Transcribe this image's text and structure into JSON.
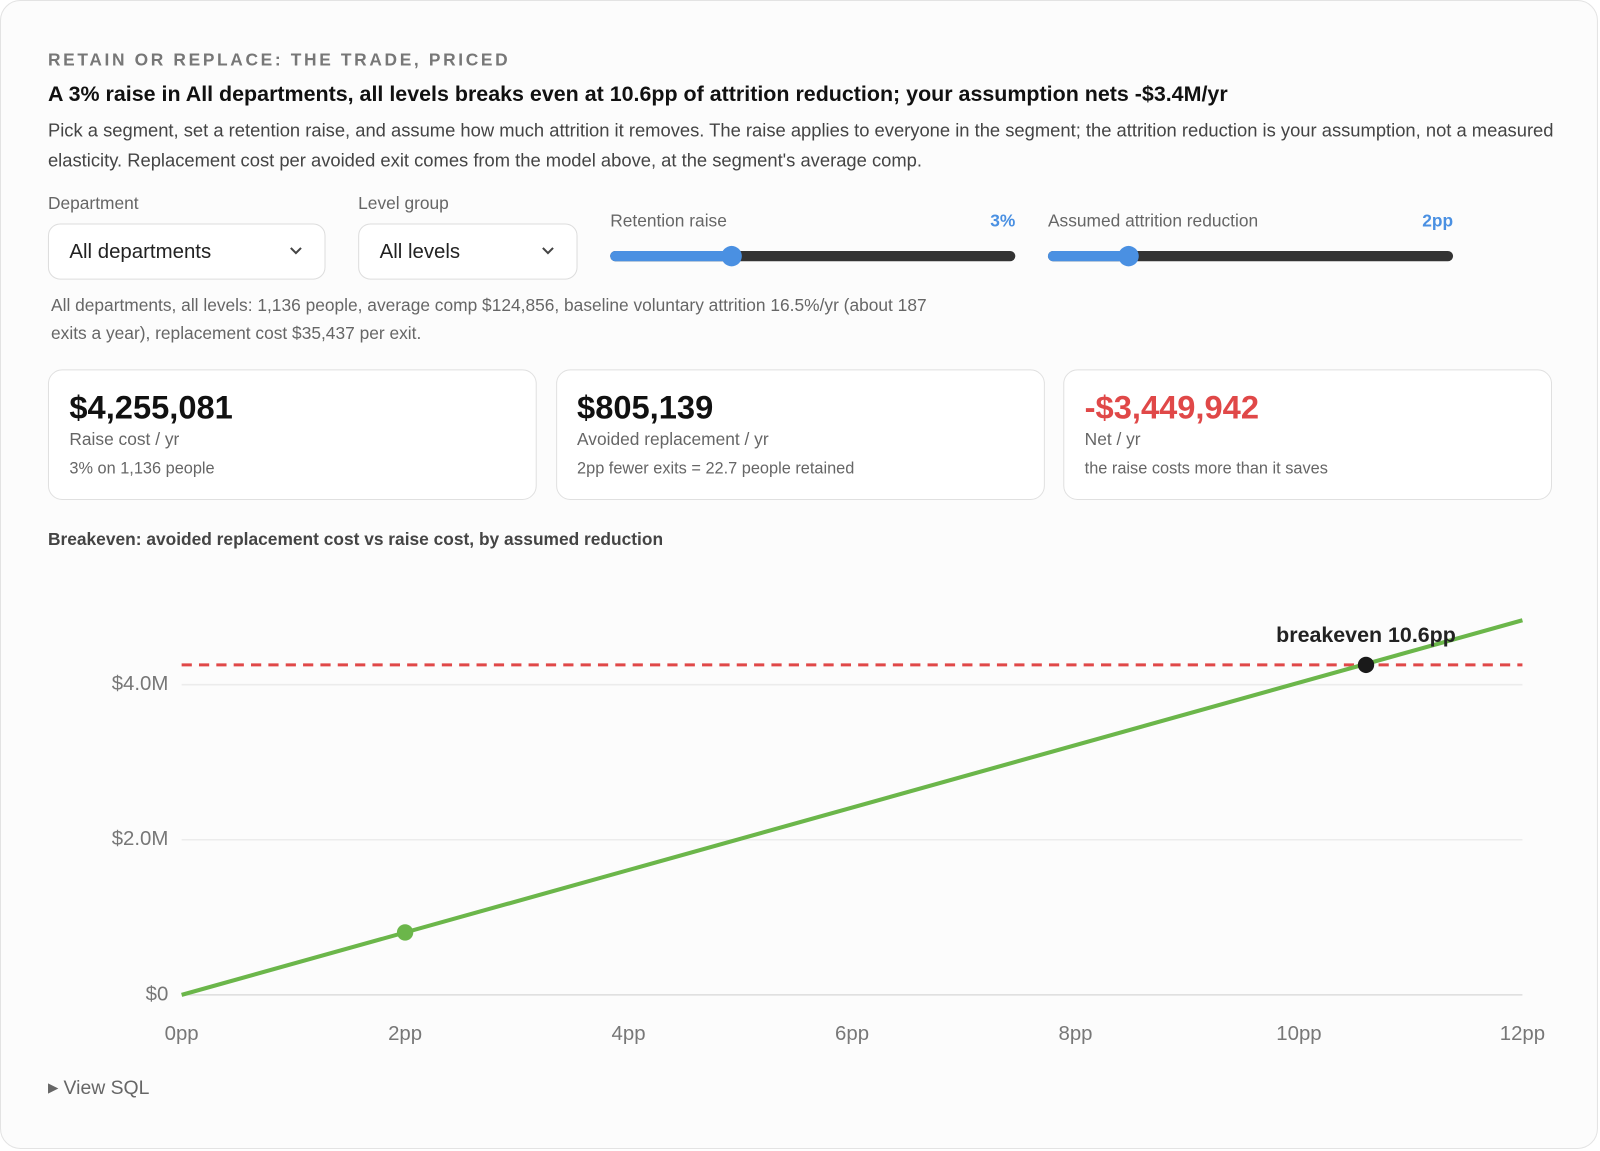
{
  "header": {
    "eyebrow": "RETAIN OR REPLACE: THE TRADE, PRICED",
    "headline": "A 3% raise in All departments, all levels breaks even at 10.6pp of attrition reduction; your assumption nets -$3.4M/yr",
    "description": "Pick a segment, set a retention raise, and assume how much attrition it removes. The raise applies to everyone in the segment; the attrition reduction is your assumption, not a measured elasticity. Replacement cost per avoided exit comes from the model above, at the segment's average comp."
  },
  "controls": {
    "department": {
      "label": "Department",
      "selected": "All departments"
    },
    "level_group": {
      "label": "Level group",
      "selected": "All levels"
    },
    "retention_raise": {
      "label": "Retention raise",
      "value_label": "3%",
      "value": 3,
      "min": 0,
      "max": 10
    },
    "attrition_reduction": {
      "label": "Assumed attrition reduction",
      "value_label": "2pp",
      "value": 2,
      "min": 0,
      "max": 10
    }
  },
  "summary": "All departments, all levels: 1,136 people, average comp $124,856, baseline voluntary attrition 16.5%/yr (about 187 exits a year), replacement cost $35,437 per exit.",
  "cards": [
    {
      "value": "$4,255,081",
      "label": "Raise cost / yr",
      "note": "3% on 1,136 people"
    },
    {
      "value": "$805,139",
      "label": "Avoided replacement / yr",
      "note": "2pp fewer exits = 22.7 people retained"
    },
    {
      "value": "-$3,449,942",
      "label": "Net / yr",
      "note": "the raise costs more than it saves",
      "color": "#e04848"
    }
  ],
  "chart_data": {
    "type": "line",
    "title": "Breakeven: avoided replacement cost vs raise cost, by assumed reduction",
    "x": [
      0,
      12
    ],
    "series": [
      {
        "color": "#6bb64a",
        "values": [
          0,
          4830834
        ]
      }
    ],
    "xlim": [
      0,
      12
    ],
    "xticks": [
      {
        "value": 0,
        "label": "0pp"
      },
      {
        "value": 2,
        "label": "2pp"
      },
      {
        "value": 4,
        "label": "4pp"
      },
      {
        "value": 6,
        "label": "6pp"
      },
      {
        "value": 8,
        "label": "8pp"
      },
      {
        "value": 10,
        "label": "10pp"
      },
      {
        "value": 12,
        "label": "12pp"
      }
    ],
    "ylim": [
      0,
      5000000
    ],
    "yticks": [
      {
        "value": 0,
        "label": "$0"
      },
      {
        "value": 2000000,
        "label": "$2.0M"
      },
      {
        "value": 4000000,
        "label": "$4.0M"
      }
    ],
    "grid": true,
    "reference_line": {
      "value": 4255081,
      "color": "#e04848",
      "style": "dashed"
    },
    "points": [
      {
        "x": 2,
        "value": 805139,
        "color": "#6bb64a"
      },
      {
        "x": 10.6,
        "value": 4255081,
        "color": "#1a1a1a",
        "label": "breakeven 10.6pp"
      }
    ]
  },
  "footer": {
    "view_sql": "View SQL"
  }
}
